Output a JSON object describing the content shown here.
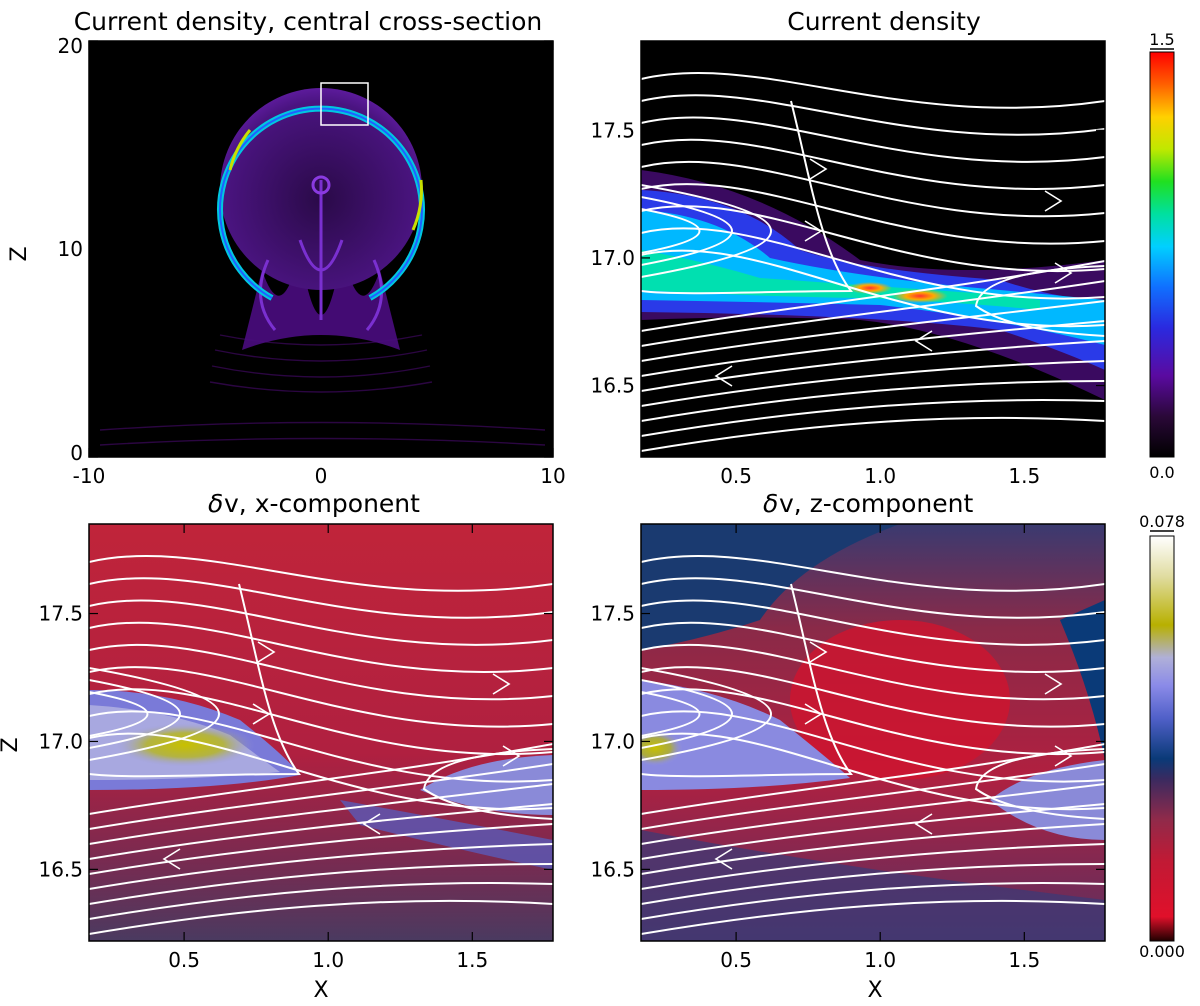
{
  "chart_data": [
    {
      "id": "p1",
      "type": "heatmap",
      "title": "Current density, central cross-section",
      "xlabel": "",
      "ylabel": "Z",
      "xlim": [
        -10,
        10
      ],
      "ylim": [
        0,
        20
      ],
      "x_ticks": [
        -10,
        0,
        10
      ],
      "x_tick_labels": [
        "-10",
        "0",
        "10"
      ],
      "y_ticks": [
        0,
        10,
        20
      ],
      "y_tick_labels": [
        "0",
        "10",
        "20"
      ],
      "annotations": [
        {
          "kind": "box",
          "x": [
            0,
            2
          ],
          "y": [
            16.5,
            18.5
          ]
        }
      ],
      "colormap": "current-density",
      "colorbar_range": [
        0.0,
        1.5
      ]
    },
    {
      "id": "p2",
      "type": "heatmap",
      "title": "Current density",
      "xlabel": "",
      "ylabel": "",
      "xlim": [
        0.17,
        1.78
      ],
      "ylim": [
        16.22,
        17.85
      ],
      "x_ticks": [
        0.5,
        1.0,
        1.5
      ],
      "x_tick_labels": [
        "0.5",
        "1.0",
        "1.5"
      ],
      "y_ticks": [
        16.5,
        17.0,
        17.5
      ],
      "y_tick_labels": [
        "16.5",
        "17.0",
        "17.5"
      ],
      "overlay": "magnetic field lines with arrows",
      "colorbar": {
        "min": 0.0,
        "max": 1.5,
        "min_label": "0.0",
        "max_label": "1.5"
      }
    },
    {
      "id": "p3",
      "type": "heatmap",
      "title_symbol": "δ",
      "title": "v,  x-component",
      "xlabel": "X",
      "ylabel": "Z",
      "xlim": [
        0.17,
        1.78
      ],
      "ylim": [
        16.22,
        17.85
      ],
      "x_ticks": [
        0.5,
        1.0,
        1.5
      ],
      "x_tick_labels": [
        "0.5",
        "1.0",
        "1.5"
      ],
      "y_ticks": [
        16.5,
        17.0,
        17.5
      ],
      "y_tick_labels": [
        "16.5",
        "17.0",
        "17.5"
      ],
      "overlay": "magnetic field lines with arrows"
    },
    {
      "id": "p4",
      "type": "heatmap",
      "title_symbol": "δ",
      "title": "v, z-component",
      "xlabel": "X",
      "ylabel": "",
      "xlim": [
        0.17,
        1.78
      ],
      "ylim": [
        16.22,
        17.85
      ],
      "x_ticks": [
        0.5,
        1.0,
        1.5
      ],
      "x_tick_labels": [
        "0.5",
        "1.0",
        "1.5"
      ],
      "y_ticks": [
        16.5,
        17.0,
        17.5
      ],
      "y_tick_labels": [
        "16.5",
        "17.0",
        "17.5"
      ],
      "overlay": "magnetic field lines with arrows",
      "colorbar": {
        "min": 0.0,
        "max": 0.078,
        "min_label": "0.000",
        "max_label": "0.078"
      }
    }
  ],
  "colors": {
    "current_density_scale": [
      "#000000",
      "#2a0838",
      "#5a0aa0",
      "#3a2ad8",
      "#2060ff",
      "#00c8ff",
      "#00e0a0",
      "#20e020",
      "#d0e800",
      "#ffb000",
      "#ff5000",
      "#ff0000"
    ],
    "velocity_scale": [
      "#200000",
      "#d0102a",
      "#b02040",
      "#6a2a50",
      "#103a70",
      "#4a5ac0",
      "#9090e8",
      "#b0b0d0",
      "#b8b000",
      "#e8e0a0",
      "#ffffff"
    ],
    "field_lines": "#ffffff",
    "selection_box": "#ffffff"
  }
}
